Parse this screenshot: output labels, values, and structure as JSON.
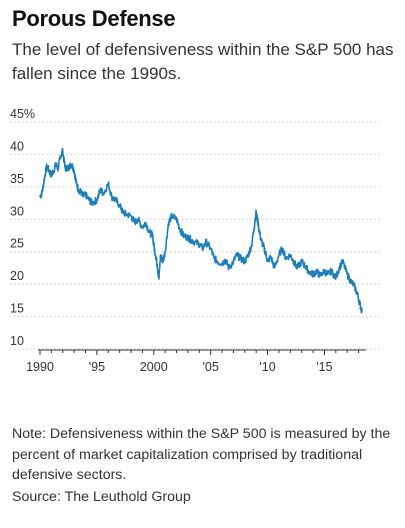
{
  "header": {
    "title": "Porous Defense",
    "subtitle": "The level of defensiveness within the S&P 500 has fallen since the 1990s."
  },
  "footer": {
    "note": "Note: Defensiveness within the S&P 500 is measured by the percent of market capitalization comprised by traditional defensive sectors.",
    "source": "Source: The Leuthold Group"
  },
  "colors": {
    "line": "#1d7fb8",
    "grid": "#c8c8c8",
    "axis": "#333333"
  },
  "chart_data": {
    "type": "line",
    "title": "Porous Defense",
    "subtitle": "The level of defensiveness within the S&P 500 has fallen since the 1990s.",
    "xlabel": "",
    "ylabel": "",
    "xlim": [
      1990,
      2018.3
    ],
    "ylim": [
      10,
      45
    ],
    "unit": "%",
    "grid": true,
    "y_ticks": [
      10,
      15,
      20,
      25,
      30,
      35,
      40,
      45
    ],
    "y_tick_labels": [
      "10",
      "15",
      "20",
      "25",
      "30",
      "35",
      "40",
      "45%"
    ],
    "x_ticks": [
      1990,
      1995,
      2000,
      2005,
      2010,
      2015
    ],
    "x_tick_labels": [
      "1990",
      "'95",
      "2000",
      "'05",
      "'10",
      "'15"
    ],
    "series": [
      {
        "name": "",
        "x": [
          1990.0,
          1990.2,
          1990.4,
          1990.6,
          1990.8,
          1991.0,
          1991.2,
          1991.4,
          1991.6,
          1991.8,
          1992.0,
          1992.2,
          1992.4,
          1992.6,
          1992.8,
          1993.0,
          1993.2,
          1993.4,
          1993.6,
          1993.8,
          1994.0,
          1994.3,
          1994.6,
          1995.0,
          1995.3,
          1995.6,
          1996.0,
          1996.3,
          1996.6,
          1997.0,
          1997.3,
          1997.6,
          1998.0,
          1998.3,
          1998.6,
          1999.0,
          1999.3,
          1999.6,
          1999.9,
          2000.0,
          2000.15,
          2000.3,
          2000.45,
          2000.6,
          2000.8,
          2001.0,
          2001.3,
          2001.6,
          2002.0,
          2002.3,
          2002.6,
          2003.0,
          2003.3,
          2003.6,
          2004.0,
          2004.3,
          2004.6,
          2005.0,
          2005.3,
          2005.6,
          2006.0,
          2006.3,
          2006.6,
          2007.0,
          2007.3,
          2007.6,
          2008.0,
          2008.3,
          2008.6,
          2008.8,
          2009.0,
          2009.2,
          2009.4,
          2009.6,
          2009.8,
          2010.0,
          2010.3,
          2010.6,
          2011.0,
          2011.3,
          2011.6,
          2012.0,
          2012.3,
          2012.6,
          2013.0,
          2013.3,
          2013.6,
          2014.0,
          2014.3,
          2014.6,
          2015.0,
          2015.3,
          2015.6,
          2016.0,
          2016.3,
          2016.6,
          2017.0,
          2017.3,
          2017.6,
          2017.9,
          2018.1,
          2018.3
        ],
        "values": [
          33.5,
          34.2,
          36.5,
          38.2,
          37.5,
          36.8,
          37.5,
          38.5,
          37.8,
          39.8,
          40.5,
          38.0,
          37.8,
          38.2,
          38.5,
          37.5,
          35.5,
          34.5,
          34.2,
          33.5,
          33.8,
          33.0,
          32.5,
          33.0,
          34.5,
          34.0,
          35.5,
          33.5,
          33.0,
          32.2,
          31.0,
          30.8,
          30.5,
          29.5,
          30.0,
          28.8,
          29.5,
          28.0,
          27.5,
          26.0,
          24.5,
          23.0,
          20.8,
          24.5,
          23.5,
          25.0,
          29.5,
          30.5,
          30.0,
          28.5,
          27.5,
          27.2,
          26.8,
          26.5,
          26.2,
          25.5,
          26.5,
          25.5,
          24.0,
          23.5,
          23.2,
          23.8,
          22.5,
          23.5,
          24.5,
          24.0,
          23.5,
          24.5,
          26.0,
          28.5,
          31.2,
          29.0,
          27.0,
          26.0,
          25.0,
          23.5,
          24.2,
          22.5,
          24.5,
          25.5,
          24.0,
          24.5,
          23.5,
          22.5,
          23.5,
          22.8,
          22.0,
          21.5,
          22.0,
          21.3,
          22.0,
          21.5,
          22.0,
          21.0,
          22.5,
          23.5,
          21.5,
          20.5,
          19.8,
          18.5,
          17.0,
          15.8
        ]
      }
    ]
  }
}
